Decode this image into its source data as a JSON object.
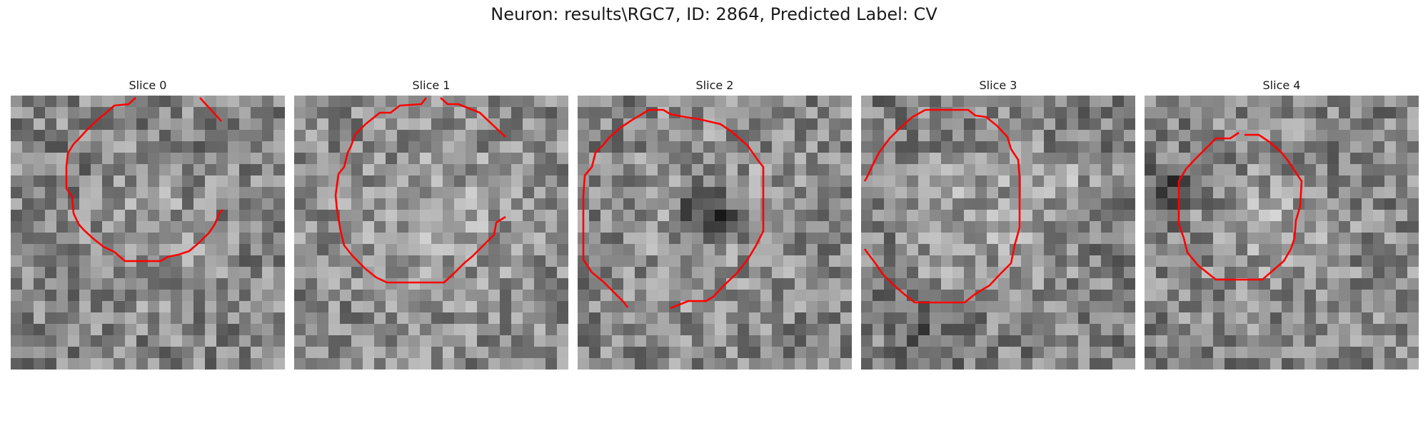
{
  "figure": {
    "title": "Neuron: results\\RGC7, ID: 2864, Predicted Label: CV"
  },
  "panels": [
    {
      "title": "Slice 0",
      "contour_color": "#ff0000"
    },
    {
      "title": "Slice 1",
      "contour_color": "#ff0000"
    },
    {
      "title": "Slice 2",
      "contour_color": "#ff0000"
    },
    {
      "title": "Slice 3",
      "contour_color": "#ff0000"
    },
    {
      "title": "Slice 4",
      "contour_color": "#ff0000"
    }
  ]
}
